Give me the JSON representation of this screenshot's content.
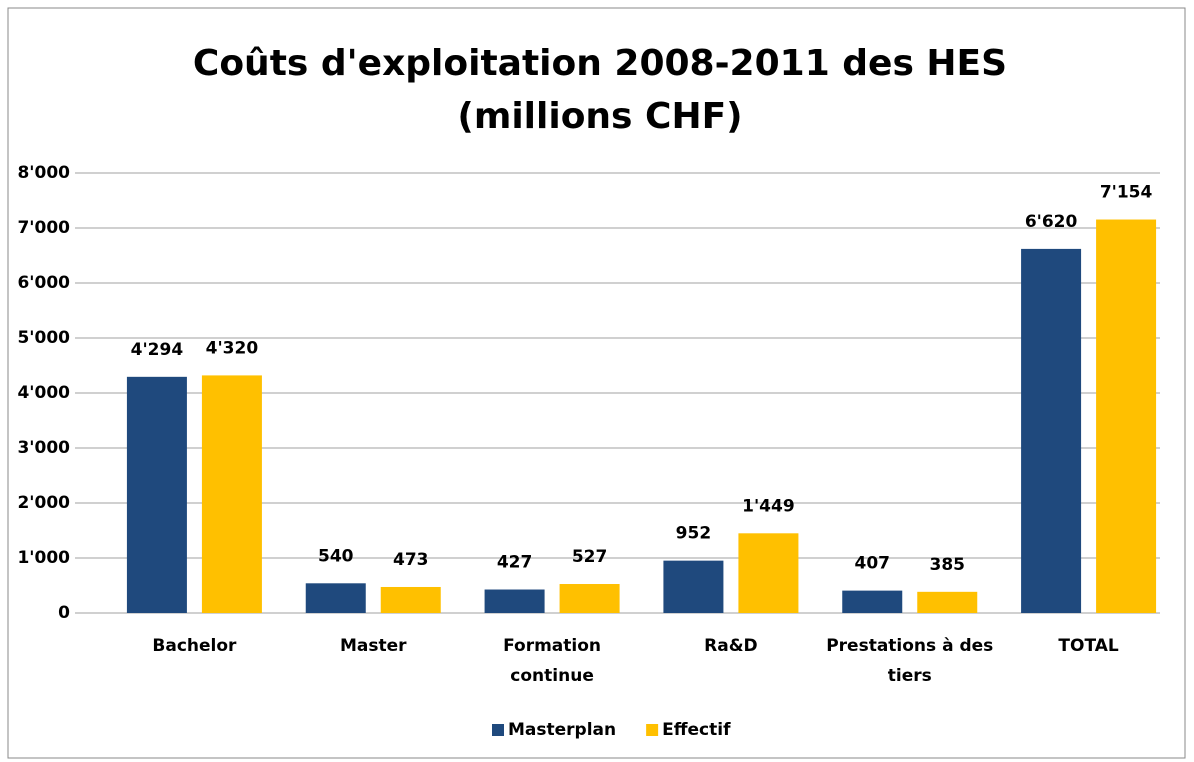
{
  "chart_data": {
    "type": "bar",
    "title": "Coûts d'exploitation 2008-2011 des HES",
    "subtitle": "(millions CHF)",
    "categories": [
      "Bachelor",
      "Master",
      "Formation continue",
      "Ra&D",
      "Prestations à des tiers",
      "TOTAL"
    ],
    "series": [
      {
        "name": "Masterplan",
        "color": "#1f497d",
        "values": [
          4294,
          540,
          427,
          952,
          407,
          6620
        ],
        "value_labels": [
          "4'294",
          "540",
          "427",
          "952",
          "407",
          "6'620"
        ]
      },
      {
        "name": "Effectif",
        "color": "#ffc000",
        "values": [
          4320,
          473,
          527,
          1449,
          385,
          7154
        ],
        "value_labels": [
          "4'320",
          "473",
          "527",
          "1'449",
          "385",
          "7'154"
        ]
      }
    ],
    "ylim": [
      0,
      8000
    ],
    "yticks": [
      0,
      {
        "value": 1000,
        "label": "1'000"
      },
      {
        "value": 2000,
        "label": "2'000"
      },
      {
        "value": 3000,
        "label": "3'000"
      },
      {
        "value": 4000,
        "label": "4'000"
      },
      {
        "value": 5000,
        "label": "5'000"
      },
      {
        "value": 6000,
        "label": "6'000"
      },
      {
        "value": 7000,
        "label": "7'000"
      },
      {
        "value": 8000,
        "label": "8'000"
      }
    ],
    "grid": true,
    "legend": "bottom"
  }
}
